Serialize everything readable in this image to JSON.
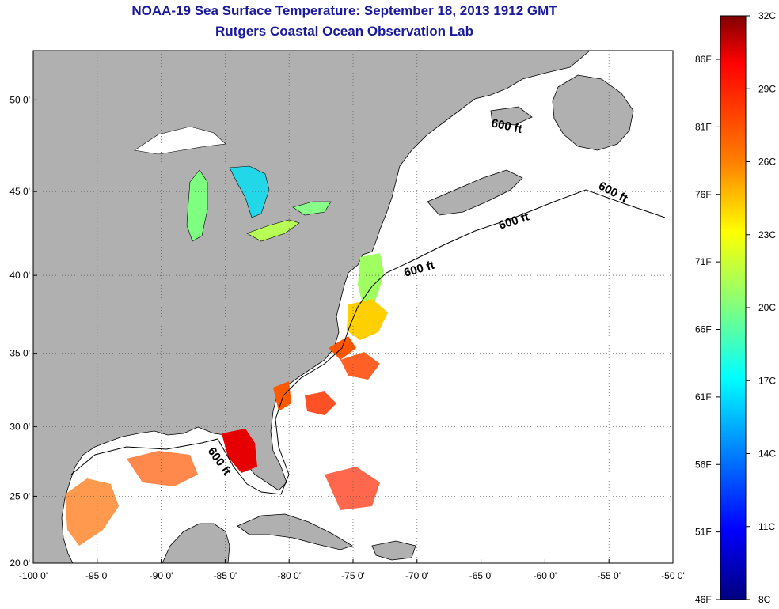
{
  "title": "NOAA-19 Sea Surface Temperature:  September 18, 2013 1912 GMT",
  "subtitle": "Rutgers Coastal Ocean Observation Lab",
  "map": {
    "lon_range": [
      -100,
      -50
    ],
    "lat_range": [
      20,
      52.5
    ],
    "lon_ticks": [
      "-100 0'",
      "-95 0'",
      "-90 0'",
      "-85 0'",
      "-80 0'",
      "-75 0'",
      "-70 0'",
      "-65 0'",
      "-60 0'",
      "-55 0'",
      "-50 0'"
    ],
    "lat_ticks": [
      "20 0'",
      "25 0'",
      "30 0'",
      "35 0'",
      "40 0'",
      "45 0'",
      "50 0'"
    ],
    "contour_labels": [
      "600 ft",
      "600 ft",
      "600 ft",
      "600 ft",
      "600 ft"
    ],
    "land_color": "#b0b0b0",
    "ocean_color": "#ffffff"
  },
  "colorbar": {
    "celsius_labels": [
      "32C",
      "29C",
      "26C",
      "23C",
      "20C",
      "17C",
      "14C",
      "11C",
      "8C"
    ],
    "fahrenheit_labels": [
      "86F",
      "81F",
      "76F",
      "71F",
      "66F",
      "61F",
      "56F",
      "51F",
      "46F"
    ],
    "colors": [
      "#7f0000",
      "#ff0000",
      "#ff7f00",
      "#ffff00",
      "#7fff7f",
      "#00ffff",
      "#007fff",
      "#0000ff",
      "#00007f"
    ]
  }
}
